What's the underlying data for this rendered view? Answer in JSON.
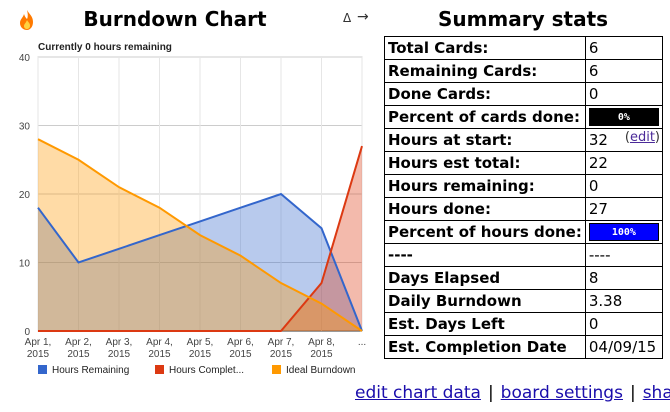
{
  "header": {
    "title": "Burndown Chart",
    "delta_symbol": "Δ",
    "arrow_symbol": "→",
    "stats_title": "Summary stats",
    "fire_icon": "flame-icon"
  },
  "stats": [
    {
      "label": "Total Cards:",
      "value": "6"
    },
    {
      "label": "Remaining Cards:",
      "value": "6"
    },
    {
      "label": "Done Cards:",
      "value": "0"
    },
    {
      "label": "Percent of cards done:",
      "bar": {
        "text": "0%",
        "fraction": 0,
        "color": "#000000"
      }
    },
    {
      "label": "Hours at start:",
      "value": "32",
      "edit": "edit"
    },
    {
      "label": "Hours est total:",
      "value": "22"
    },
    {
      "label": "Hours remaining:",
      "value": "0"
    },
    {
      "label": "Hours done:",
      "value": "27"
    },
    {
      "label": "Percent of hours done:",
      "bar": {
        "text": "100%",
        "fraction": 1,
        "color": "#0000ff"
      }
    },
    {
      "label": "----",
      "value": "----"
    },
    {
      "label": "Days Elapsed",
      "value": "8"
    },
    {
      "label": "Daily Burndown",
      "value": "3.38"
    },
    {
      "label": "Est. Days Left",
      "value": "0"
    },
    {
      "label": "Est. Completion Date",
      "value": "04/09/15"
    }
  ],
  "footer": {
    "edit_chart_data": "edit chart data",
    "board_settings": "board settings",
    "share": "share",
    "separator": "|"
  },
  "chart_data": {
    "type": "area",
    "title": "Currently 0 hours remaining",
    "categories": [
      "Apr 1, 2015",
      "Apr 2, 2015",
      "Apr 3, 2015",
      "Apr 4, 2015",
      "Apr 5, 2015",
      "Apr 6, 2015",
      "Apr 7, 2015",
      "Apr 8, 2015",
      "..."
    ],
    "ylim": [
      0,
      40
    ],
    "yticks": [
      0,
      10,
      20,
      30,
      40
    ],
    "series": [
      {
        "name": "Hours Remaining",
        "color": "#3366cc",
        "values": [
          18,
          10,
          12,
          14,
          16,
          18,
          20,
          15,
          0
        ]
      },
      {
        "name": "Hours Complet...",
        "color": "#dc3912",
        "values": [
          0,
          0,
          0,
          0,
          0,
          0,
          0,
          7,
          27
        ]
      },
      {
        "name": "Ideal Burndown",
        "color": "#ff9900",
        "values": [
          28,
          25,
          21,
          18,
          14,
          11,
          7,
          4,
          0
        ]
      }
    ],
    "legend_position": "bottom"
  }
}
